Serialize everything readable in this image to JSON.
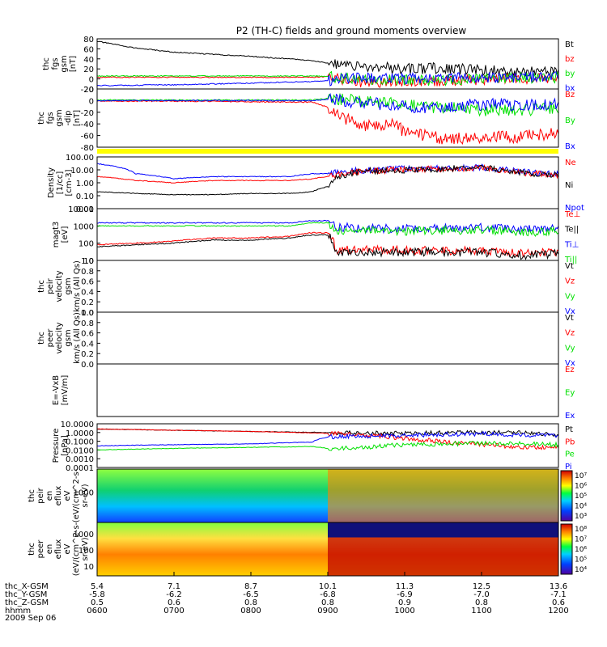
{
  "title": "P2 (TH-C) fields and ground moments overview",
  "date_label": "2009 Sep 06",
  "colors": {
    "black": "#000000",
    "red": "#ff0000",
    "green": "#00e000",
    "blue": "#0000ff",
    "yellow": "#ffff00"
  },
  "chart_data": [
    {
      "type": "line",
      "ylabel": [
        "thc",
        "fgs",
        "gsm",
        "[nT]"
      ],
      "yticks": [
        "80",
        "60",
        "40",
        "20",
        "0",
        "-20"
      ],
      "ylim": [
        -30,
        90
      ],
      "legend": [
        {
          "text": "Bt",
          "color": "#000000"
        },
        {
          "text": "bz",
          "color": "#ff0000"
        },
        {
          "text": "by",
          "color": "#00e000"
        },
        {
          "text": "bx",
          "color": "#0000ff"
        }
      ],
      "series": [
        {
          "name": "Bt",
          "color": "#000000",
          "x": [
            6.0,
            6.5,
            7.0,
            7.5,
            8.0,
            8.5,
            8.8,
            9.0,
            9.3,
            9.6,
            10.0,
            10.5,
            11.0,
            11.5,
            12.0
          ],
          "y": [
            84,
            68,
            58,
            53,
            48,
            42,
            38,
            32,
            25,
            22,
            18,
            20,
            15,
            12,
            10
          ]
        },
        {
          "name": "bz",
          "color": "#ff0000",
          "x": [
            6.0,
            7.0,
            8.0,
            8.8,
            9.0,
            9.2,
            9.5,
            10.0,
            10.5,
            11.0,
            11.5,
            12.0
          ],
          "y": [
            -2,
            -2,
            -2,
            -2,
            0,
            -10,
            -15,
            -12,
            -10,
            -8,
            -5,
            -5
          ]
        },
        {
          "name": "by",
          "color": "#00e000",
          "x": [
            6.0,
            7.0,
            8.0,
            8.8,
            9.0,
            9.3,
            9.6,
            10.0,
            10.5,
            11.0,
            12.0
          ],
          "y": [
            1,
            1,
            1,
            1,
            0,
            -5,
            -8,
            -8,
            -10,
            -5,
            -2
          ]
        },
        {
          "name": "bx",
          "color": "#0000ff",
          "x": [
            6.0,
            7.0,
            8.0,
            8.8,
            9.0,
            9.3,
            9.6,
            10.0,
            11.0,
            12.0
          ],
          "y": [
            -22,
            -20,
            -16,
            -12,
            -10,
            -5,
            -2,
            -5,
            -3,
            0
          ]
        }
      ]
    },
    {
      "type": "line",
      "ylabel": [
        "thc",
        "fgs",
        "gsm",
        "-dip",
        "[nT]"
      ],
      "yticks": [
        "20",
        "0",
        "-20",
        "-40",
        "-60",
        "-80"
      ],
      "ylim": [
        -90,
        20
      ],
      "legend": [
        {
          "text": "Bz",
          "color": "#ff0000"
        },
        {
          "text": "By",
          "color": "#00e000"
        },
        {
          "text": "Bx",
          "color": "#0000ff"
        }
      ],
      "series": [
        {
          "name": "Bz",
          "color": "#ff0000",
          "x": [
            6.0,
            7.0,
            8.0,
            8.8,
            9.0,
            9.2,
            9.5,
            9.8,
            10.0,
            10.3,
            10.6,
            11.0,
            11.5,
            12.0
          ],
          "y": [
            -3,
            -3,
            -4,
            -5,
            -15,
            -35,
            -50,
            -45,
            -60,
            -70,
            -75,
            -70,
            -70,
            -65
          ]
        },
        {
          "name": "By",
          "color": "#00e000",
          "x": [
            6.0,
            7.0,
            8.0,
            8.8,
            9.0,
            9.5,
            10.0,
            10.5,
            11.0,
            11.5,
            12.0
          ],
          "y": [
            -1,
            -1,
            -1,
            -1,
            2,
            -5,
            -10,
            -15,
            -20,
            -20,
            -15
          ]
        },
        {
          "name": "Bx",
          "color": "#0000ff",
          "x": [
            6.0,
            7.0,
            8.0,
            8.8,
            9.0,
            9.5,
            10.0,
            11.0,
            12.0
          ],
          "y": [
            -2,
            -2,
            -2,
            -2,
            0,
            -5,
            -15,
            -10,
            -8
          ]
        }
      ]
    },
    {
      "type": "line",
      "ylabel": [
        "Density",
        "[1/cc]",
        "[cm-3]"
      ],
      "log": true,
      "yticks": [
        "100.00",
        "10.00",
        "1.00",
        "0.10",
        "0.01"
      ],
      "ylim": [
        0.01,
        100
      ],
      "legend": [
        {
          "text": "Ne",
          "color": "#ff0000"
        },
        {
          "text": "Ni",
          "color": "#000000"
        },
        {
          "text": "Npot",
          "color": "#0000ff"
        }
      ],
      "series": [
        {
          "name": "Npot",
          "color": "#0000ff",
          "x": [
            6.0,
            6.5,
            7.0,
            7.5,
            8.0,
            8.5,
            8.8,
            9.0,
            9.5,
            10.0,
            11.0,
            11.5,
            12.0
          ],
          "y": [
            30,
            5,
            2,
            3,
            3,
            3,
            5,
            5,
            10,
            12,
            15,
            7,
            5
          ]
        },
        {
          "name": "Ne",
          "color": "#ff0000",
          "x": [
            6.0,
            6.5,
            7.0,
            7.5,
            8.0,
            8.5,
            8.8,
            9.0,
            9.5,
            10.0,
            11.0,
            11.5,
            12.0
          ],
          "y": [
            3,
            1.5,
            1,
            1.5,
            1.5,
            1.5,
            2,
            3,
            8,
            10,
            14,
            6,
            4
          ]
        },
        {
          "name": "Ni",
          "color": "#000000",
          "x": [
            6.0,
            6.5,
            7.0,
            7.5,
            8.0,
            8.5,
            8.8,
            9.0,
            9.5,
            10.0,
            11.0,
            11.5,
            12.0
          ],
          "y": [
            0.2,
            0.15,
            0.12,
            0.12,
            0.15,
            0.15,
            0.2,
            0.5,
            8,
            10,
            14,
            6,
            4
          ]
        }
      ]
    },
    {
      "type": "line",
      "ylabel": [
        "magt3",
        "[eV]"
      ],
      "log": true,
      "yticks": [
        "10000",
        "1000",
        "100",
        "10"
      ],
      "ylim": [
        10,
        10000
      ],
      "legend": [
        {
          "text": "Te⊥",
          "color": "#ff0000"
        },
        {
          "text": "Te||",
          "color": "#000000"
        },
        {
          "text": "Ti⊥",
          "color": "#0000ff"
        },
        {
          "text": "Ti||",
          "color": "#00e000"
        }
      ],
      "series": [
        {
          "name": "Ti⊥",
          "color": "#0000ff",
          "x": [
            6.0,
            7.0,
            8.0,
            8.5,
            8.8,
            9.0,
            9.1,
            9.5,
            10.0,
            11.0,
            11.5,
            12.0
          ],
          "y": [
            1500,
            1500,
            1500,
            1500,
            2000,
            2000,
            900,
            700,
            700,
            800,
            600,
            700
          ]
        },
        {
          "name": "Ti||",
          "color": "#00e000",
          "x": [
            6.0,
            7.0,
            8.0,
            8.5,
            8.8,
            9.0,
            9.1,
            9.5,
            10.0,
            11.0,
            11.5,
            12.0
          ],
          "y": [
            1000,
            1000,
            1000,
            1000,
            1500,
            1500,
            600,
            500,
            500,
            600,
            400,
            500
          ]
        },
        {
          "name": "Te⊥",
          "color": "#ff0000",
          "x": [
            6.0,
            6.5,
            7.0,
            7.5,
            8.0,
            8.5,
            8.8,
            9.0,
            9.1,
            9.5,
            10.0,
            11.0,
            11.5,
            12.0
          ],
          "y": [
            80,
            100,
            130,
            200,
            200,
            250,
            400,
            400,
            40,
            40,
            40,
            35,
            25,
            30
          ]
        },
        {
          "name": "Te||",
          "color": "#000000",
          "x": [
            6.0,
            6.5,
            7.0,
            7.5,
            8.0,
            8.5,
            8.8,
            9.0,
            9.1,
            9.5,
            10.0,
            11.0,
            11.5,
            12.0
          ],
          "y": [
            60,
            80,
            100,
            150,
            150,
            200,
            300,
            300,
            30,
            30,
            30,
            30,
            20,
            25
          ]
        }
      ]
    },
    {
      "type": "line",
      "ylabel": [
        "thc",
        "peir",
        "velocity",
        "gsm",
        "km/s (All Qs)"
      ],
      "yticks": [
        "1.0",
        "0.8",
        "0.6",
        "0.4",
        "0.2",
        "0.0"
      ],
      "ylim": [
        0,
        1
      ],
      "legend": [
        {
          "text": "Vt",
          "color": "#000000"
        },
        {
          "text": "Vz",
          "color": "#ff0000"
        },
        {
          "text": "Vy",
          "color": "#00e000"
        },
        {
          "text": "Vx",
          "color": "#0000ff"
        }
      ],
      "series": []
    },
    {
      "type": "line",
      "ylabel": [
        "thc",
        "peer",
        "velocity",
        "gsm",
        "km/s (All Qs)"
      ],
      "yticks": [
        "1.0",
        "0.8",
        "0.6",
        "0.4",
        "0.2",
        "0.0"
      ],
      "ylim": [
        0,
        1
      ],
      "legend": [
        {
          "text": "Vt",
          "color": "#000000"
        },
        {
          "text": "Vz",
          "color": "#ff0000"
        },
        {
          "text": "Vy",
          "color": "#00e000"
        },
        {
          "text": "Vx",
          "color": "#0000ff"
        }
      ],
      "series": []
    },
    {
      "type": "line",
      "ylabel": [
        "E=-VxB",
        "[mV/m]"
      ],
      "yticks": [],
      "ylim": [
        0,
        1
      ],
      "legend": [
        {
          "text": "Ez",
          "color": "#ff0000"
        },
        {
          "text": "Ey",
          "color": "#00e000"
        },
        {
          "text": "Ex",
          "color": "#0000ff"
        }
      ],
      "series": []
    },
    {
      "type": "line",
      "ylabel": [
        "Pressure",
        "[nPa]"
      ],
      "log": true,
      "yticks": [
        "10.0000",
        "1.0000",
        "0.1000",
        "0.0100",
        "0.0010",
        "0.0001"
      ],
      "ylim": [
        0.0001,
        10
      ],
      "legend": [
        {
          "text": "Pt",
          "color": "#000000"
        },
        {
          "text": "Pb",
          "color": "#ff0000"
        },
        {
          "text": "Pe",
          "color": "#00e000"
        },
        {
          "text": "Pi",
          "color": "#0000ff"
        }
      ],
      "series": [
        {
          "name": "Pt",
          "color": "#000000",
          "x": [
            6.0,
            7.0,
            8.0,
            9.0,
            10.0,
            11.0,
            11.5,
            12.0
          ],
          "y": [
            2.5,
            1.8,
            1.3,
            1.0,
            0.8,
            1.0,
            0.9,
            0.5
          ]
        },
        {
          "name": "Pb",
          "color": "#ff0000",
          "x": [
            6.0,
            7.0,
            8.0,
            9.0,
            9.5,
            10.0,
            10.5,
            11.0,
            11.5,
            12.0
          ],
          "y": [
            2.5,
            1.8,
            1.3,
            0.8,
            0.5,
            0.2,
            0.08,
            0.04,
            0.02,
            0.02
          ]
        },
        {
          "name": "Pi",
          "color": "#0000ff",
          "x": [
            6.0,
            7.0,
            8.0,
            8.8,
            9.0,
            9.5,
            10.0,
            11.0,
            12.0
          ],
          "y": [
            0.03,
            0.04,
            0.05,
            0.08,
            0.3,
            0.4,
            0.5,
            0.7,
            0.4
          ]
        },
        {
          "name": "Pe",
          "color": "#00e000",
          "x": [
            6.0,
            7.0,
            8.0,
            8.8,
            9.0,
            9.5,
            10.0,
            11.0,
            12.0
          ],
          "y": [
            0.01,
            0.015,
            0.02,
            0.025,
            0.015,
            0.02,
            0.04,
            0.06,
            0.04
          ]
        }
      ]
    },
    {
      "type": "heatmap",
      "ylabel": [
        "thc",
        "peir",
        "en",
        "eflux",
        "eV",
        "(eV/(cm^2-s-",
        "sr-eV)"
      ],
      "yticks": [
        "1000"
      ],
      "colorbar_ticks": [
        "10⁷",
        "10⁶",
        "10⁵",
        "10⁴",
        "10³"
      ]
    },
    {
      "type": "heatmap",
      "ylabel": [
        "thc",
        "peer",
        "en",
        "eflux",
        "eV",
        "(eV/(cm^2-s-",
        "sr-eV)"
      ],
      "yticks": [
        "1000",
        "100",
        "10"
      ],
      "colorbar_ticks": [
        "10⁸",
        "10⁷",
        "10⁶",
        "10⁵",
        "10⁴"
      ]
    }
  ],
  "x_axis": {
    "xlim": [
      6.0,
      12.0
    ],
    "tick_hours": [
      6,
      7,
      8,
      9,
      10,
      11,
      12
    ],
    "rows": [
      {
        "label": "thc_X-GSM",
        "values": [
          "5.4",
          "7.1",
          "8.7",
          "10.1",
          "11.3",
          "12.5",
          "13.6"
        ]
      },
      {
        "label": "thc_Y-GSM",
        "values": [
          "-5.8",
          "-6.2",
          "-6.5",
          "-6.8",
          "-6.9",
          "-7.0",
          "-7.1"
        ]
      },
      {
        "label": "thc_Z-GSM",
        "values": [
          "0.5",
          "0.6",
          "0.8",
          "0.8",
          "0.9",
          "0.8",
          "0.6"
        ]
      },
      {
        "label": "hhmm",
        "values": [
          "0600",
          "0700",
          "0800",
          "0900",
          "1000",
          "1100",
          "1200"
        ]
      }
    ]
  }
}
